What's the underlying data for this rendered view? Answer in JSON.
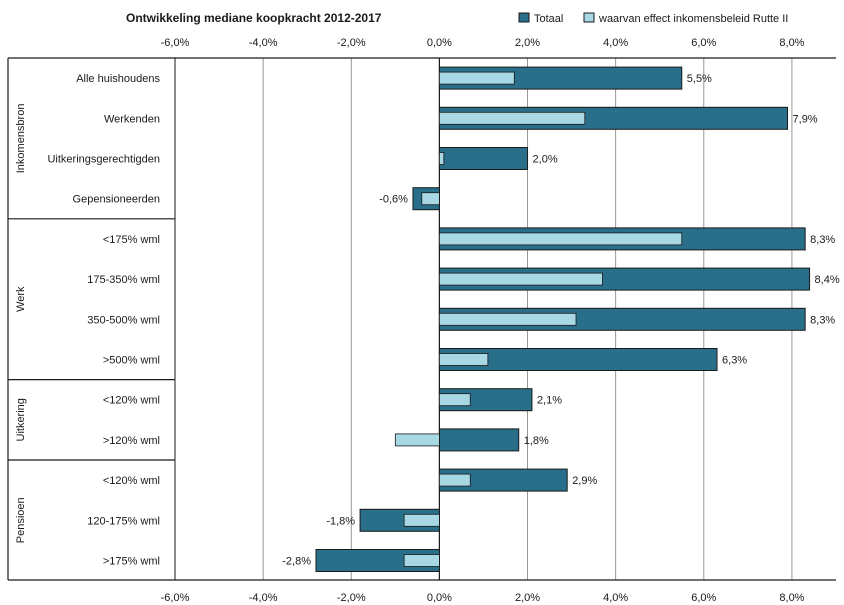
{
  "chart_data": {
    "type": "bar",
    "orientation": "horizontal",
    "title": "Ontwikkeling mediane koopkracht 2012-2017",
    "xlim": [
      -6,
      9
    ],
    "x_ticks": [
      "-6,0%",
      "-4,0%",
      "-2,0%",
      "0,0%",
      "2,0%",
      "4,0%",
      "6,0%",
      "8,0%"
    ],
    "grid": "vertical",
    "legend_position": "top-right",
    "colors": {
      "totaal": "#2a6f8a",
      "effect": "#a8d8e4",
      "border": "#1a1a1a"
    },
    "groups": [
      {
        "label": "Inkomensbron",
        "categories": [
          "Alle huishoudens",
          "Werkenden",
          "Uitkeringsgerechtigden",
          "Gepensioneerden"
        ]
      },
      {
        "label": "Werk",
        "categories": [
          "<175% wml",
          "175-350% wml",
          "350-500% wml",
          ">500% wml"
        ]
      },
      {
        "label": "Uitkering",
        "categories": [
          "<120% wml",
          ">120% wml"
        ]
      },
      {
        "label": "Pensioen",
        "categories": [
          "<120% wml",
          "120-175% wml",
          ">175% wml"
        ]
      }
    ],
    "series": [
      {
        "name": "Totaal",
        "values": [
          5.5,
          7.9,
          2.0,
          -0.6,
          8.3,
          8.4,
          8.3,
          6.3,
          2.1,
          1.8,
          2.9,
          -1.8,
          -2.8
        ],
        "labels": [
          "5,5%",
          "7,9%",
          "2,0%",
          "-0,6%",
          "8,3%",
          "8,4%",
          "8,3%",
          "6,3%",
          "2,1%",
          "1,8%",
          "2,9%",
          "-1,8%",
          "-2,8%"
        ]
      },
      {
        "name": "waarvan effect inkomensbeleid Rutte II",
        "values": [
          1.7,
          3.3,
          0.1,
          -0.4,
          5.5,
          3.7,
          3.1,
          1.1,
          0.7,
          -1.0,
          0.7,
          -0.8,
          -0.8
        ]
      }
    ]
  }
}
